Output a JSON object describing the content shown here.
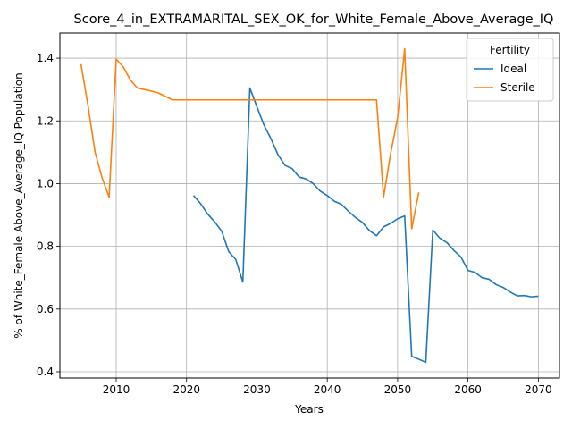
{
  "chart_data": {
    "type": "line",
    "title": "Score_4_in_EXTRAMARITAL_SEX_OK_for_White_Female_Above_Average_IQ",
    "xlabel": "Years",
    "ylabel": "% of White_Female Above_Average_IQ Population",
    "xlim": [
      2002,
      2073
    ],
    "ylim": [
      0.38,
      1.48
    ],
    "xticks": [
      2010,
      2020,
      2030,
      2040,
      2050,
      2060,
      2070
    ],
    "yticks": [
      0.4,
      0.6,
      0.8,
      1.0,
      1.2,
      1.4
    ],
    "grid": true,
    "legend": {
      "title": "Fertility",
      "placement": "top-right"
    },
    "series": [
      {
        "name": "Ideal",
        "color": "#1f77b4",
        "points": [
          [
            2021,
            0.962
          ],
          [
            2022,
            0.936
          ],
          [
            2023,
            0.903
          ],
          [
            2024,
            0.878
          ],
          [
            2025,
            0.848
          ],
          [
            2026,
            0.783
          ],
          [
            2027,
            0.758
          ],
          [
            2028,
            0.686
          ],
          [
            2029,
            1.305
          ],
          [
            2030,
            1.245
          ],
          [
            2031,
            1.187
          ],
          [
            2032,
            1.143
          ],
          [
            2033,
            1.092
          ],
          [
            2034,
            1.058
          ],
          [
            2035,
            1.048
          ],
          [
            2036,
            1.021
          ],
          [
            2037,
            1.015
          ],
          [
            2038,
            1.0
          ],
          [
            2039,
            0.976
          ],
          [
            2040,
            0.962
          ],
          [
            2041,
            0.944
          ],
          [
            2042,
            0.934
          ],
          [
            2043,
            0.912
          ],
          [
            2044,
            0.892
          ],
          [
            2045,
            0.876
          ],
          [
            2046,
            0.85
          ],
          [
            2047,
            0.834
          ],
          [
            2048,
            0.862
          ],
          [
            2049,
            0.873
          ],
          [
            2050,
            0.888
          ],
          [
            2051,
            0.897
          ],
          [
            2052,
            0.449
          ],
          [
            2053,
            0.44
          ],
          [
            2054,
            0.43
          ],
          [
            2055,
            0.852
          ],
          [
            2056,
            0.826
          ],
          [
            2057,
            0.812
          ],
          [
            2058,
            0.787
          ],
          [
            2059,
            0.766
          ],
          [
            2060,
            0.723
          ],
          [
            2061,
            0.717
          ],
          [
            2062,
            0.7
          ],
          [
            2063,
            0.695
          ],
          [
            2064,
            0.678
          ],
          [
            2065,
            0.669
          ],
          [
            2066,
            0.654
          ],
          [
            2067,
            0.642
          ],
          [
            2068,
            0.643
          ],
          [
            2069,
            0.639
          ],
          [
            2070,
            0.641
          ]
        ]
      },
      {
        "name": "Sterile",
        "color": "#ff7f0e",
        "points": [
          [
            2005,
            1.381
          ],
          [
            2006,
            1.248
          ],
          [
            2007,
            1.1
          ],
          [
            2008,
            1.018
          ],
          [
            2009,
            0.957
          ],
          [
            2010,
            1.397
          ],
          [
            2011,
            1.372
          ],
          [
            2012,
            1.331
          ],
          [
            2013,
            1.305
          ],
          [
            2014,
            1.3
          ],
          [
            2015,
            1.295
          ],
          [
            2016,
            1.289
          ],
          [
            2017,
            1.278
          ],
          [
            2018,
            1.267
          ],
          [
            2019,
            1.267
          ],
          [
            2020,
            1.267
          ],
          [
            2025,
            1.267
          ],
          [
            2030,
            1.267
          ],
          [
            2035,
            1.267
          ],
          [
            2040,
            1.267
          ],
          [
            2045,
            1.267
          ],
          [
            2047,
            1.267
          ],
          [
            2048,
            0.957
          ],
          [
            2049,
            1.095
          ],
          [
            2050,
            1.211
          ],
          [
            2051,
            1.43
          ],
          [
            2052,
            0.856
          ],
          [
            2053,
            0.972
          ]
        ]
      }
    ]
  }
}
